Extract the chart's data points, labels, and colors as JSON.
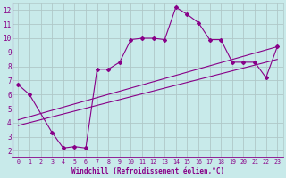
{
  "xlabel": "Windchill (Refroidissement éolien,°C)",
  "background_color": "#c8eaea",
  "grid_color": "#b0c8c8",
  "line_color": "#880088",
  "xlim": [
    -0.5,
    23.5
  ],
  "ylim": [
    1.5,
    12.5
  ],
  "xticks": [
    0,
    1,
    2,
    3,
    4,
    5,
    6,
    7,
    8,
    9,
    10,
    11,
    12,
    13,
    14,
    15,
    16,
    17,
    18,
    19,
    20,
    21,
    22,
    23
  ],
  "yticks": [
    2,
    3,
    4,
    5,
    6,
    7,
    8,
    9,
    10,
    11,
    12
  ],
  "series1_x": [
    0,
    1,
    3,
    4,
    5,
    6,
    7,
    8,
    9,
    10,
    11,
    12,
    13,
    14,
    15,
    16,
    17,
    18,
    19,
    20,
    21,
    22,
    23
  ],
  "series1_y": [
    6.7,
    6.0,
    3.3,
    2.2,
    2.3,
    2.2,
    7.8,
    7.8,
    8.3,
    9.9,
    10.0,
    10.0,
    9.9,
    12.2,
    11.7,
    11.1,
    9.9,
    9.9,
    8.3,
    8.3,
    8.3,
    7.2,
    9.4
  ],
  "series2_x": [
    0,
    23
  ],
  "series2_y": [
    3.8,
    8.5
  ],
  "series3_x": [
    0,
    23
  ],
  "series3_y": [
    4.2,
    9.4
  ],
  "xticklabel_fontsize": 4.8,
  "yticklabel_fontsize": 5.5
}
